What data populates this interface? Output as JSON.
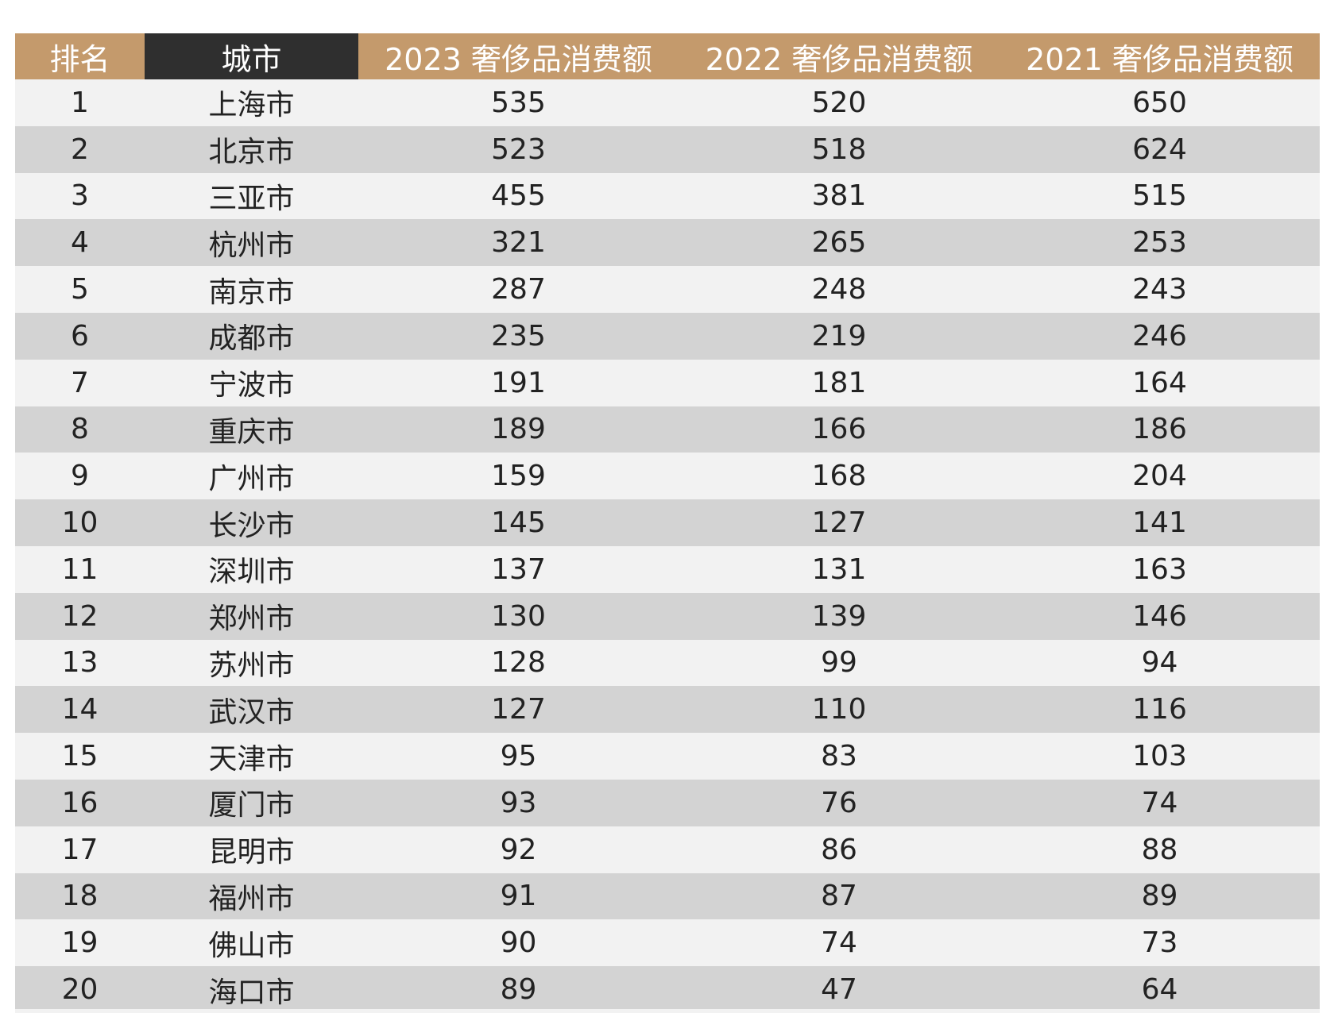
{
  "chart_data": {
    "type": "table",
    "columns": [
      "排名",
      "城市",
      "2023 奢侈品消费额",
      "2022 奢侈品消费额",
      "2021 奢侈品消费额"
    ],
    "rows": [
      [
        "1",
        "上海市",
        "535",
        "520",
        "650"
      ],
      [
        "2",
        "北京市",
        "523",
        "518",
        "624"
      ],
      [
        "3",
        "三亚市",
        "455",
        "381",
        "515"
      ],
      [
        "4",
        "杭州市",
        "321",
        "265",
        "253"
      ],
      [
        "5",
        "南京市",
        "287",
        "248",
        "243"
      ],
      [
        "6",
        "成都市",
        "235",
        "219",
        "246"
      ],
      [
        "7",
        "宁波市",
        "191",
        "181",
        "164"
      ],
      [
        "8",
        "重庆市",
        "189",
        "166",
        "186"
      ],
      [
        "9",
        "广州市",
        "159",
        "168",
        "204"
      ],
      [
        "10",
        "长沙市",
        "145",
        "127",
        "141"
      ],
      [
        "11",
        "深圳市",
        "137",
        "131",
        "163"
      ],
      [
        "12",
        "郑州市",
        "130",
        "139",
        "146"
      ],
      [
        "13",
        "苏州市",
        "128",
        "99",
        "94"
      ],
      [
        "14",
        "武汉市",
        "127",
        "110",
        "116"
      ],
      [
        "15",
        "天津市",
        "95",
        "83",
        "103"
      ],
      [
        "16",
        "厦门市",
        "93",
        "76",
        "74"
      ],
      [
        "17",
        "昆明市",
        "92",
        "86",
        "88"
      ],
      [
        "18",
        "福州市",
        "91",
        "87",
        "89"
      ],
      [
        "19",
        "佛山市",
        "90",
        "74",
        "73"
      ],
      [
        "20",
        "海口市",
        "89",
        "47",
        "64"
      ]
    ]
  },
  "colors": {
    "header_gold": "#c49a6c",
    "header_dark": "#2f2f2f",
    "row_light": "#f2f2f2",
    "row_dark": "#d3d3d3"
  }
}
